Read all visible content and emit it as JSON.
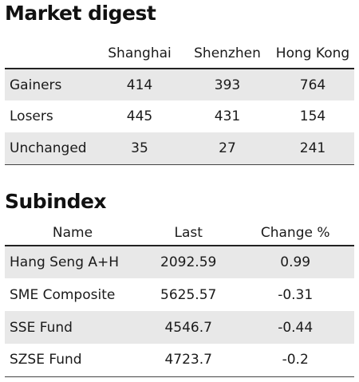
{
  "market": {
    "title": "Market digest",
    "columns": [
      "",
      "Shanghai",
      "Shenzhen",
      "Hong Kong"
    ],
    "rows": [
      {
        "label": "Gainers",
        "values": [
          "414",
          "393",
          "764"
        ]
      },
      {
        "label": "Losers",
        "values": [
          "445",
          "431",
          "154"
        ]
      },
      {
        "label": "Unchanged",
        "values": [
          "35",
          "27",
          "241"
        ]
      }
    ]
  },
  "subindex": {
    "title": "Subindex",
    "columns": [
      "Name",
      "Last",
      "Change %"
    ],
    "rows": [
      {
        "name": "Hang Seng A+H",
        "last": "2092.59",
        "change": "0.99"
      },
      {
        "name": "SME Composite",
        "last": "5625.57",
        "change": "-0.31"
      },
      {
        "name": "SSE Fund",
        "last": "4546.7",
        "change": "-0.44"
      },
      {
        "name": "SZSE Fund",
        "last": "4723.7",
        "change": "-0.2"
      }
    ]
  },
  "colors": {
    "row_shade": "#e8e8e8",
    "rule": "#222222",
    "text": "#1a1a1a"
  }
}
